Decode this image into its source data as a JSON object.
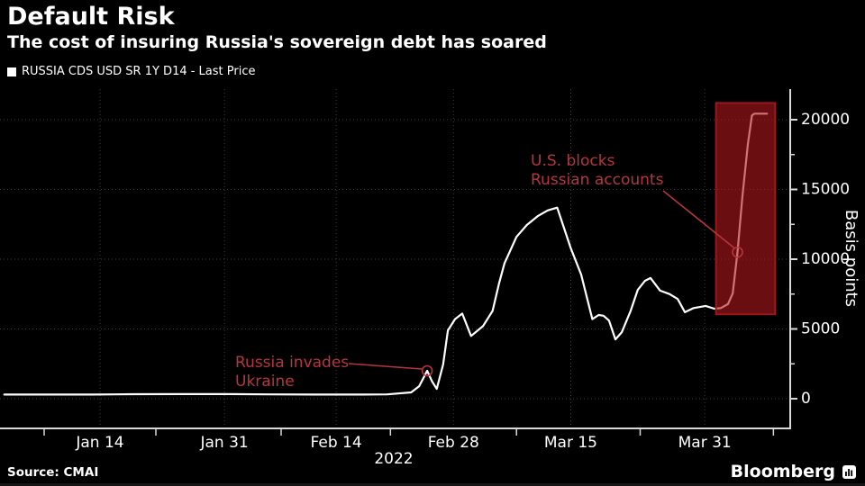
{
  "header": {
    "title": "Default Risk",
    "subtitle": "The cost of insuring Russia's sovereign debt has soared"
  },
  "legend": {
    "swatch_color": "#ffffff",
    "label": "RUSSIA CDS USD SR 1Y D14 - Last Price"
  },
  "footer": {
    "source": "Source: CMAI",
    "brand": "Bloomberg"
  },
  "colors": {
    "background": "#000000",
    "line": "#ffffff",
    "accent_red": "#b5363e",
    "highlight_fill": "#b2181c",
    "highlight_border": "#9c1719",
    "grid": "#3e3e3e",
    "axis": "#d9d9d9",
    "text": "#ffffff"
  },
  "chart_data": {
    "type": "line",
    "title": "Default Risk",
    "subtitle": "The cost of insuring Russia's sovereign debt has soared",
    "series_name": "RUSSIA CDS USD SR 1Y D14 - Last Price",
    "ylabel": "Basis points",
    "year_label": "2022",
    "x_unit": "day-of-year-2022",
    "ylim": [
      0,
      21500
    ],
    "yticks": [
      0,
      5000,
      10000,
      15000,
      20000
    ],
    "yticks_minor": [
      2500,
      7500,
      12500,
      17500
    ],
    "grid": "dotted",
    "legend_position": "top-left",
    "x_labels": [
      {
        "label": "Jan 14",
        "x": 14
      },
      {
        "label": "Jan 31",
        "x": 29.6
      },
      {
        "label": "Feb 14",
        "x": 43.6
      },
      {
        "label": "Feb 28",
        "x": 58.3
      },
      {
        "label": "Mar 15",
        "x": 73
      },
      {
        "label": "Mar 31",
        "x": 89.8
      }
    ],
    "x_boundary_ticks": [
      7,
      21,
      36.7,
      50.4,
      66.2,
      81.7,
      98.4
    ],
    "points": [
      [
        2,
        300
      ],
      [
        7,
        300
      ],
      [
        13,
        300
      ],
      [
        18,
        320
      ],
      [
        24,
        330
      ],
      [
        30,
        330
      ],
      [
        35,
        310
      ],
      [
        41,
        300
      ],
      [
        47,
        300
      ],
      [
        50,
        310
      ],
      [
        53,
        450
      ],
      [
        54,
        900
      ],
      [
        55,
        2000
      ],
      [
        55.6,
        1250
      ],
      [
        56.2,
        700
      ],
      [
        57,
        2450
      ],
      [
        57.6,
        4900
      ],
      [
        58.5,
        5700
      ],
      [
        59.4,
        6100
      ],
      [
        60.5,
        4500
      ],
      [
        62,
        5200
      ],
      [
        63.2,
        6300
      ],
      [
        64,
        8250
      ],
      [
        64.7,
        9700
      ],
      [
        66.2,
        11600
      ],
      [
        67.5,
        12450
      ],
      [
        68.9,
        13100
      ],
      [
        70.1,
        13500
      ],
      [
        71.3,
        13700
      ],
      [
        73,
        10800
      ],
      [
        74.3,
        8900
      ],
      [
        75.7,
        5700
      ],
      [
        76.5,
        6000
      ],
      [
        77.1,
        5950
      ],
      [
        77.8,
        5600
      ],
      [
        78.6,
        4250
      ],
      [
        79.4,
        4770
      ],
      [
        80.5,
        6300
      ],
      [
        81.4,
        7800
      ],
      [
        82.3,
        8450
      ],
      [
        83,
        8650
      ],
      [
        84.2,
        7750
      ],
      [
        85.4,
        7500
      ],
      [
        86.4,
        7150
      ],
      [
        87.3,
        6200
      ],
      [
        88.4,
        6500
      ],
      [
        89.9,
        6650
      ],
      [
        91,
        6450
      ],
      [
        91.8,
        6500
      ],
      [
        92.7,
        6780
      ],
      [
        93.3,
        7550
      ],
      [
        93.9,
        10500
      ],
      [
        94.5,
        14400
      ],
      [
        95.2,
        18250
      ],
      [
        95.7,
        20300
      ],
      [
        96,
        20430
      ],
      [
        97.6,
        20430
      ]
    ],
    "highlight_box": {
      "x1": 91.2,
      "x2": 98.6,
      "y1": 6050,
      "y2": 21200
    },
    "annotations": [
      {
        "lines": [
          "Russia invades",
          "Ukraine"
        ],
        "target": {
          "x": 55,
          "y": 2000
        }
      },
      {
        "lines": [
          "U.S. blocks",
          "Russian accounts"
        ],
        "target": {
          "x": 93.9,
          "y": 10500
        }
      }
    ]
  }
}
